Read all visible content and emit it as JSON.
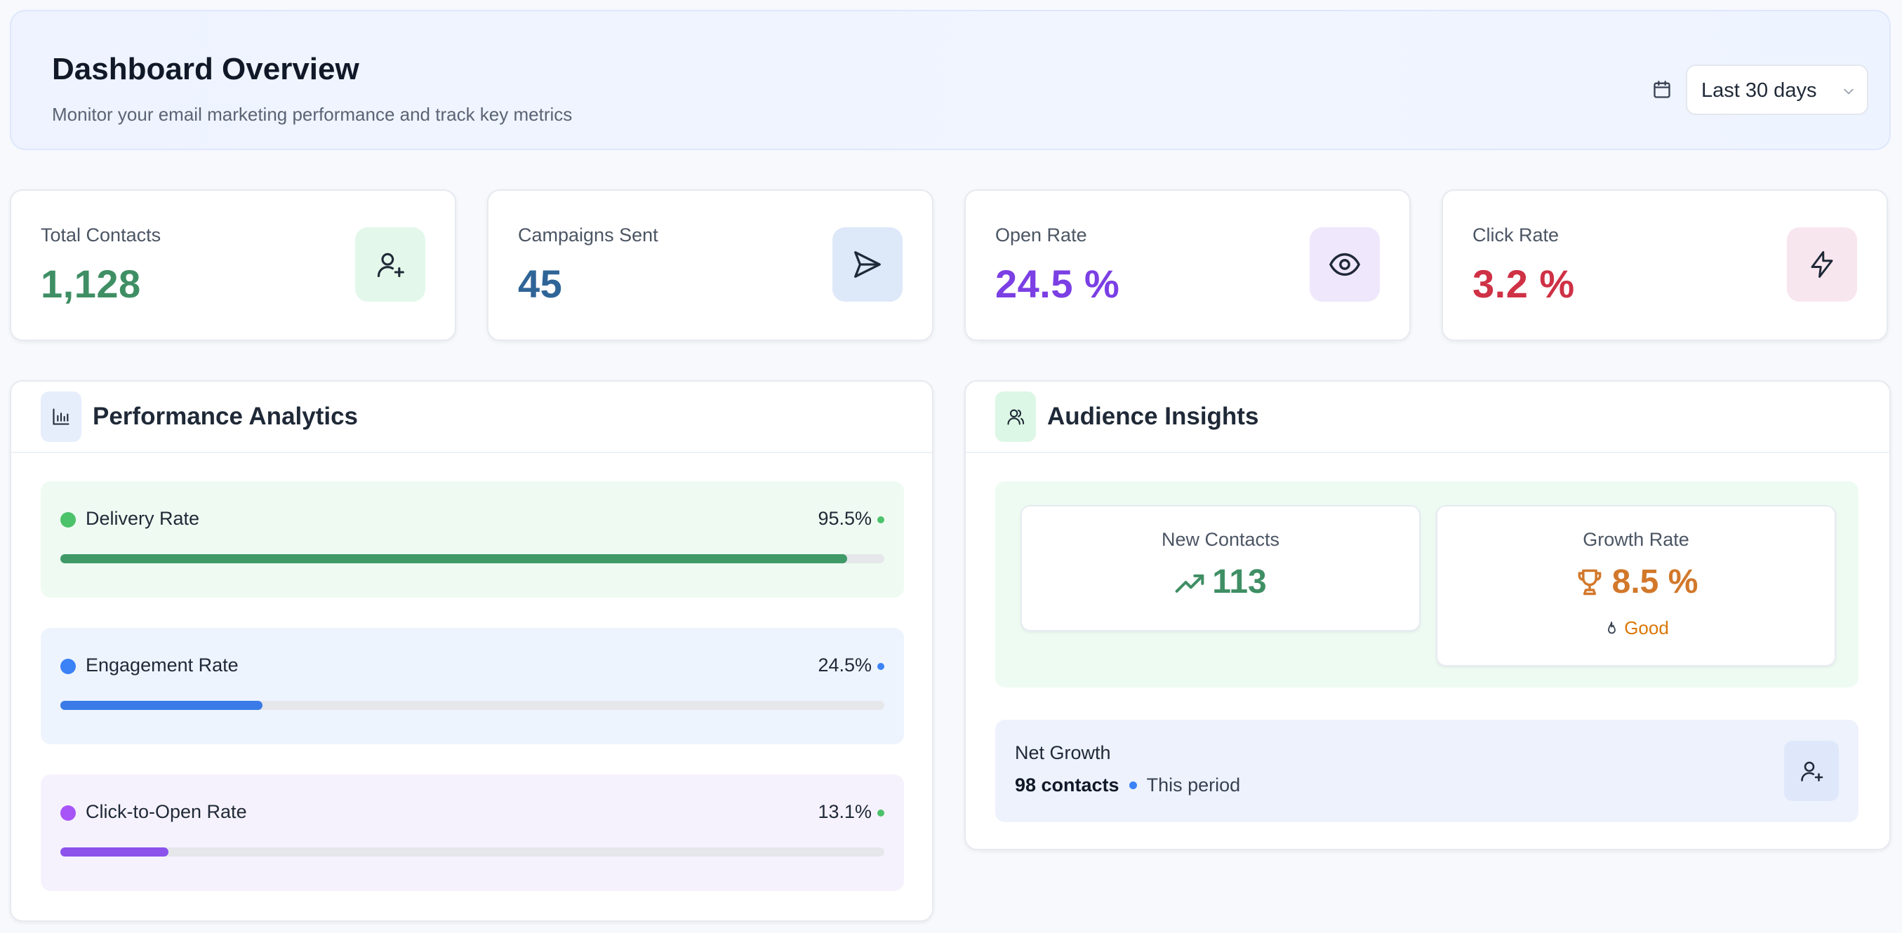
{
  "header": {
    "title": "Dashboard Overview",
    "subtitle": "Monitor your email marketing performance and track key metrics",
    "date_range": {
      "value": "Last 30 days",
      "icon": "calendar-icon"
    }
  },
  "stats": [
    {
      "label": "Total Contacts",
      "value": "1,128",
      "color": "#3f8f64",
      "icon": "user-plus-icon",
      "icon_bg": "#e3f8ea"
    },
    {
      "label": "Campaigns Sent",
      "value": "45",
      "color": "#2f6497",
      "icon": "send-icon",
      "icon_bg": "#dde8f9"
    },
    {
      "label": "Open Rate",
      "value": "24.5 %",
      "color": "#7b3fe4",
      "icon": "eye-icon",
      "icon_bg": "#efe7fb"
    },
    {
      "label": "Click Rate",
      "value": "3.2 %",
      "color": "#cf3145",
      "icon": "zap-icon",
      "icon_bg": "#f8e6ef"
    }
  ],
  "performance": {
    "title": "Performance Analytics",
    "icon": "bar-chart-icon",
    "metrics": [
      {
        "label": "Delivery Rate",
        "value": "95.5%",
        "fraction": 0.955,
        "dot": "#4cc26b",
        "fill": "#3f9a68",
        "bg": "#effbf2",
        "indicator": "#4cc26b"
      },
      {
        "label": "Engagement Rate",
        "value": "24.5%",
        "fraction": 0.245,
        "dot": "#3b82f6",
        "fill": "#3b7be8",
        "bg": "#eef4fe",
        "indicator": "#3b82f6"
      },
      {
        "label": "Click-to-Open Rate",
        "value": "13.1%",
        "fraction": 0.131,
        "dot": "#a855f7",
        "fill": "#8b52ec",
        "bg": "#f6f2fd",
        "indicator": "#4cc26b"
      }
    ]
  },
  "audience": {
    "title": "Audience Insights",
    "icon": "users-icon",
    "new_contacts": {
      "label": "New Contacts",
      "value": "113",
      "icon": "trending-up-icon",
      "color": "#3f8f64"
    },
    "growth_rate": {
      "label": "Growth Rate",
      "value": "8.5 %",
      "icon": "trophy-icon",
      "color": "#d2782b",
      "status": "Good",
      "status_icon": "flame-icon"
    },
    "net_growth": {
      "title": "Net Growth",
      "contacts": "98 contacts",
      "period": "This period",
      "icon": "user-plus-icon"
    }
  }
}
